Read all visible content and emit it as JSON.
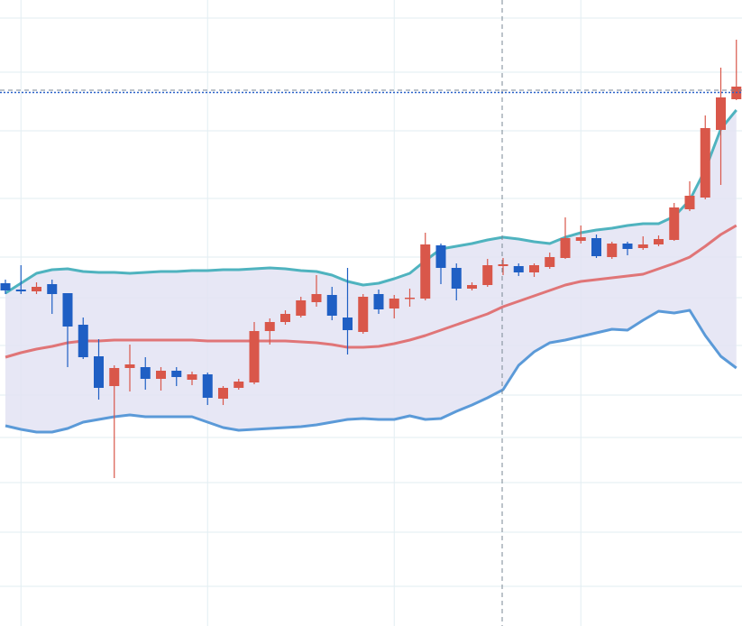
{
  "chart_data": {
    "type": "candlestick",
    "ylim": [
      0,
      694
    ],
    "yticks": [
      674,
      614,
      549,
      474,
      409,
      364,
      311,
      256,
      209,
      159,
      104,
      44
    ],
    "grid": true,
    "up_color": "#d9574a",
    "down_color": "#1f5fc4",
    "band_fill": "#e3e3f3",
    "open": [
      380,
      373,
      371,
      379,
      369,
      334,
      299,
      266,
      286,
      287,
      274,
      283,
      273,
      279,
      252,
      264,
      270,
      327,
      337,
      344,
      359,
      367,
      342,
      326,
      368,
      352,
      363,
      363,
      422,
      397,
      374,
      378,
      399,
      399,
      392,
      398,
      408,
      427,
      430,
      409,
      424,
      419,
      423,
      428,
      462,
      475,
      550,
      584
    ],
    "high": [
      384,
      400,
      381,
      384,
      369,
      342,
      318,
      289,
      312,
      298,
      287,
      287,
      282,
      281,
      266,
      274,
      337,
      341,
      350,
      365,
      389,
      376,
      397,
      368,
      373,
      367,
      374,
      436,
      424,
      402,
      381,
      407,
      408,
      402,
      402,
      414,
      453,
      444,
      434,
      426,
      426,
      432,
      433,
      469,
      493,
      566,
      619,
      650
    ],
    "low": [
      368,
      368,
      368,
      346,
      287,
      296,
      251,
      164,
      260,
      262,
      261,
      266,
      267,
      245,
      245,
      262,
      268,
      312,
      334,
      342,
      354,
      339,
      301,
      324,
      346,
      341,
      354,
      361,
      379,
      361,
      372,
      376,
      389,
      388,
      387,
      396,
      407,
      424,
      408,
      407,
      411,
      417,
      421,
      427,
      460,
      473,
      489,
      583
    ],
    "close": [
      372,
      371,
      376,
      368,
      332,
      298,
      264,
      286,
      290,
      274,
      283,
      276,
      279,
      253,
      264,
      271,
      327,
      337,
      346,
      361,
      368,
      344,
      328,
      365,
      351,
      363,
      364,
      423,
      397,
      374,
      378,
      400,
      401,
      392,
      400,
      409,
      430,
      431,
      410,
      424,
      418,
      423,
      429,
      464,
      477,
      552,
      586,
      598
    ],
    "series": [
      {
        "color": "#4fb3bf",
        "values": [
          369,
          380,
          391,
          395,
          396,
          393,
          392,
          392,
          391,
          392,
          393,
          393,
          394,
          394,
          395,
          395,
          396,
          397,
          396,
          394,
          393,
          389,
          382,
          378,
          380,
          385,
          391,
          405,
          418,
          421,
          424,
          428,
          431,
          429,
          426,
          424,
          431,
          436,
          439,
          441,
          444,
          446,
          446,
          454,
          472,
          506,
          551,
          572
        ]
      },
      {
        "color": "#e07577",
        "values": [
          298,
          303,
          307,
          310,
          314,
          316,
          316,
          317,
          317,
          317,
          317,
          317,
          317,
          316,
          316,
          316,
          316,
          316,
          316,
          315,
          314,
          312,
          309,
          309,
          310,
          313,
          317,
          322,
          328,
          334,
          340,
          346,
          354,
          360,
          366,
          372,
          378,
          382,
          384,
          386,
          388,
          390,
          396,
          402,
          409,
          421,
          434,
          444
        ]
      },
      {
        "color": "#5b9ad8",
        "values": [
          222,
          218,
          215,
          215,
          219,
          226,
          229,
          232,
          234,
          232,
          232,
          232,
          232,
          226,
          220,
          217,
          218,
          219,
          220,
          221,
          223,
          226,
          229,
          230,
          229,
          229,
          233,
          229,
          230,
          238,
          245,
          253,
          262,
          289,
          304,
          314,
          317,
          321,
          325,
          329,
          328,
          339,
          349,
          347,
          350,
          322,
          299,
          286
        ]
      }
    ]
  }
}
